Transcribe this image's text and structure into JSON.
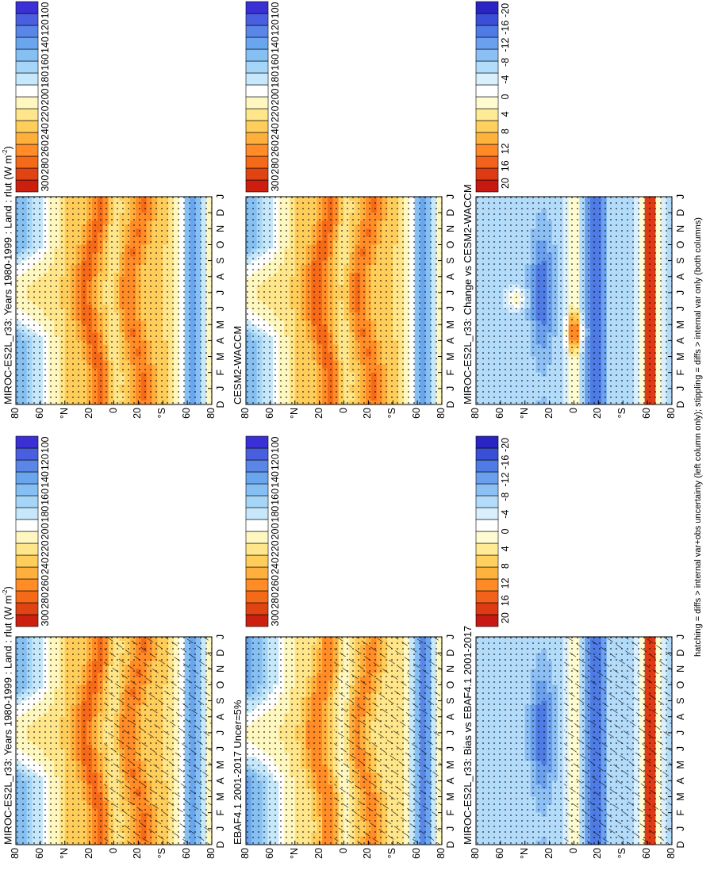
{
  "footnote": "hatching = diffs > internal var+obs uncertainty (left column only); stippling = diffs > internal var only (both columns)",
  "colors": {
    "abs_scale": [
      "#3b2fd6",
      "#4a5fe0",
      "#5a86e8",
      "#6aa6ee",
      "#86c0f2",
      "#a6d6f7",
      "#c7e8fb",
      "#ffffff",
      "#fff7c0",
      "#ffe68a",
      "#ffcd5a",
      "#ffb03c",
      "#ff8c26",
      "#f56a18",
      "#e04412",
      "#cc1f10"
    ],
    "diff_scale": [
      "#2a24c4",
      "#3a4fd8",
      "#4f7be4",
      "#6aa0ed",
      "#8cbff4",
      "#b3dbfa",
      "#d9effc",
      "#ffffff",
      "#fffbd0",
      "#ffeb95",
      "#ffd05e",
      "#ffb23c",
      "#ff8a26",
      "#f2621a",
      "#de3a14",
      "#c81812"
    ]
  },
  "chart_data": [
    {
      "type": "heatmap",
      "title": "MIROC-ES2L_r33: Years 1980-1999 : Land : rlut (W m",
      "title_superscript": "-2",
      "title_suffix": ")",
      "x_ticks": [
        "D",
        "J",
        "F",
        "M",
        "A",
        "M",
        "J",
        "J",
        "A",
        "S",
        "O",
        "N",
        "D",
        "J"
      ],
      "y_ticks": [
        "80",
        "60",
        "40",
        "20",
        "0",
        "20",
        "40",
        "60",
        "80"
      ],
      "y_tick_letter": [
        "",
        "",
        "N",
        "",
        "",
        "",
        "S",
        "",
        ""
      ],
      "variable": "abs",
      "hatching": true,
      "stippling": true
    },
    {
      "type": "heatmap",
      "title": "MIROC-ES2L_r33: Years 1980-1999 : Land : rlut (W m",
      "title_superscript": "-2",
      "title_suffix": ")",
      "x_ticks": [
        "D",
        "J",
        "F",
        "M",
        "A",
        "M",
        "J",
        "J",
        "A",
        "S",
        "O",
        "N",
        "D",
        "J"
      ],
      "y_ticks": [
        "80",
        "60",
        "40",
        "20",
        "0",
        "20",
        "40",
        "60",
        "80"
      ],
      "y_tick_letter": [
        "",
        "",
        "N",
        "",
        "",
        "",
        "S",
        "",
        ""
      ],
      "variable": "abs",
      "hatching": false,
      "stippling": true
    },
    {
      "type": "heatmap",
      "title": "EBAF4.1 2001-2017 Uncer=5%",
      "x_ticks": [
        "D",
        "J",
        "F",
        "M",
        "A",
        "M",
        "J",
        "J",
        "A",
        "S",
        "O",
        "N",
        "D",
        "J"
      ],
      "y_ticks": [
        "80",
        "60",
        "40",
        "20",
        "0",
        "20",
        "40",
        "60",
        "80"
      ],
      "y_tick_letter": [
        "",
        "",
        "N",
        "",
        "",
        "",
        "S",
        "",
        ""
      ],
      "variable": "abs",
      "hatching": true,
      "stippling": true
    },
    {
      "type": "heatmap",
      "title": "CESM2-WACCM",
      "x_ticks": [
        "D",
        "J",
        "F",
        "M",
        "A",
        "M",
        "J",
        "J",
        "A",
        "S",
        "O",
        "N",
        "D",
        "J"
      ],
      "y_ticks": [
        "80",
        "60",
        "40",
        "20",
        "0",
        "20",
        "40",
        "60",
        "80"
      ],
      "y_tick_letter": [
        "",
        "",
        "N",
        "",
        "",
        "",
        "S",
        "",
        ""
      ],
      "variable": "abs",
      "hatching": false,
      "stippling": true
    },
    {
      "type": "heatmap",
      "title": "MIROC-ES2L_r33: Bias vs EBAF4.1 2001-2017",
      "x_ticks": [
        "D",
        "J",
        "F",
        "M",
        "A",
        "M",
        "J",
        "J",
        "A",
        "S",
        "O",
        "N",
        "D",
        "J"
      ],
      "y_ticks": [
        "80",
        "60",
        "40",
        "20",
        "0",
        "20",
        "40",
        "60",
        "80"
      ],
      "y_tick_letter": [
        "",
        "",
        "N",
        "",
        "",
        "",
        "S",
        "",
        ""
      ],
      "variable": "diff",
      "hatching": true,
      "stippling": true
    },
    {
      "type": "heatmap",
      "title": "MIROC-ES2L_r33: Change vs CESM2-WACCM",
      "x_ticks": [
        "D",
        "J",
        "F",
        "M",
        "A",
        "M",
        "J",
        "J",
        "A",
        "S",
        "O",
        "N",
        "D",
        "J"
      ],
      "y_ticks": [
        "80",
        "60",
        "40",
        "20",
        "0",
        "20",
        "40",
        "60",
        "80"
      ],
      "y_tick_letter": [
        "",
        "",
        "N",
        "",
        "",
        "",
        "S",
        "",
        ""
      ],
      "variable": "diff",
      "hatching": false,
      "stippling": true
    }
  ],
  "colorbars": {
    "abs": {
      "ticks": [
        "300",
        "280",
        "260",
        "240",
        "220",
        "200",
        "180",
        "160",
        "140",
        "120",
        "100"
      ]
    },
    "diff": {
      "ticks": [
        "20",
        "16",
        "12",
        "8",
        "4",
        "0",
        "-4",
        "-8",
        "-12",
        "-16",
        "-20"
      ]
    }
  }
}
